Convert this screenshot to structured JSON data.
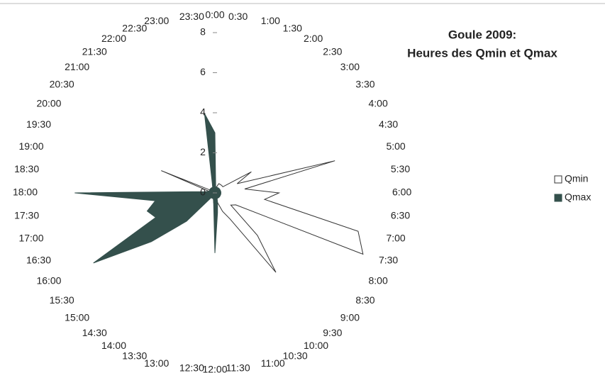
{
  "chart_data": {
    "type": "radar",
    "title": "Goule 2009:",
    "subtitle": "Heures des Qmin et Qmax",
    "categories": [
      "0:00",
      "0:30",
      "1:00",
      "1:30",
      "2:00",
      "2:30",
      "3:00",
      "3:30",
      "4:00",
      "4:30",
      "5:00",
      "5:30",
      "6:00",
      "6:30",
      "7:00",
      "7:30",
      "8:00",
      "8:30",
      "9:00",
      "9:30",
      "10:00",
      "10:30",
      "11:00",
      "11:30",
      "12:00",
      "12:30",
      "13:00",
      "13:30",
      "14:00",
      "14:30",
      "15:00",
      "15:30",
      "16:00",
      "16:30",
      "17:00",
      "17:30",
      "18:00",
      "18:30",
      "19:00",
      "19:30",
      "20:00",
      "20:30",
      "21:00",
      "21:30",
      "22:00",
      "22:30",
      "23:00",
      "23:30"
    ],
    "series": [
      {
        "name": "Qmin",
        "color": "#ffffff",
        "stroke": "#333333",
        "values": [
          0.3,
          0.3,
          0.3,
          0.5,
          0.5,
          0.5,
          0.5,
          0.5,
          2.1,
          1.2,
          6.2,
          1.5,
          3.2,
          2.5,
          7.4,
          8,
          1.2,
          1,
          3,
          5,
          1.5,
          1,
          0.5,
          0.5,
          0.5,
          0.5,
          0.3,
          0.3,
          0.3,
          0.3,
          0.3,
          0.3,
          0.3,
          0.3,
          0.5,
          1,
          0.3,
          0.3,
          0.3,
          2.9,
          0.3,
          0.3,
          0.3,
          0.3,
          0.3,
          0.3,
          0.3,
          0.3
        ]
      },
      {
        "name": "Qmax",
        "color": "#34504c",
        "stroke": "#34504c",
        "values": [
          3,
          0.3,
          0.3,
          0.3,
          0.3,
          0.3,
          0.3,
          0.3,
          0.3,
          0.3,
          0.3,
          0.3,
          0.3,
          0.3,
          0.3,
          0.3,
          0.3,
          0.3,
          0.3,
          0.3,
          0.3,
          0.3,
          0.5,
          1,
          3,
          0.5,
          0.3,
          0.3,
          0.3,
          0.3,
          2,
          4,
          7,
          3.2,
          3.5,
          3,
          7,
          0.5,
          0.3,
          0.3,
          0.3,
          0.3,
          0.3,
          0.3,
          0.3,
          0.3,
          0.5,
          4
        ]
      }
    ],
    "ylim": [
      0,
      8
    ],
    "yticks": [
      0,
      2,
      4,
      6,
      8
    ]
  }
}
